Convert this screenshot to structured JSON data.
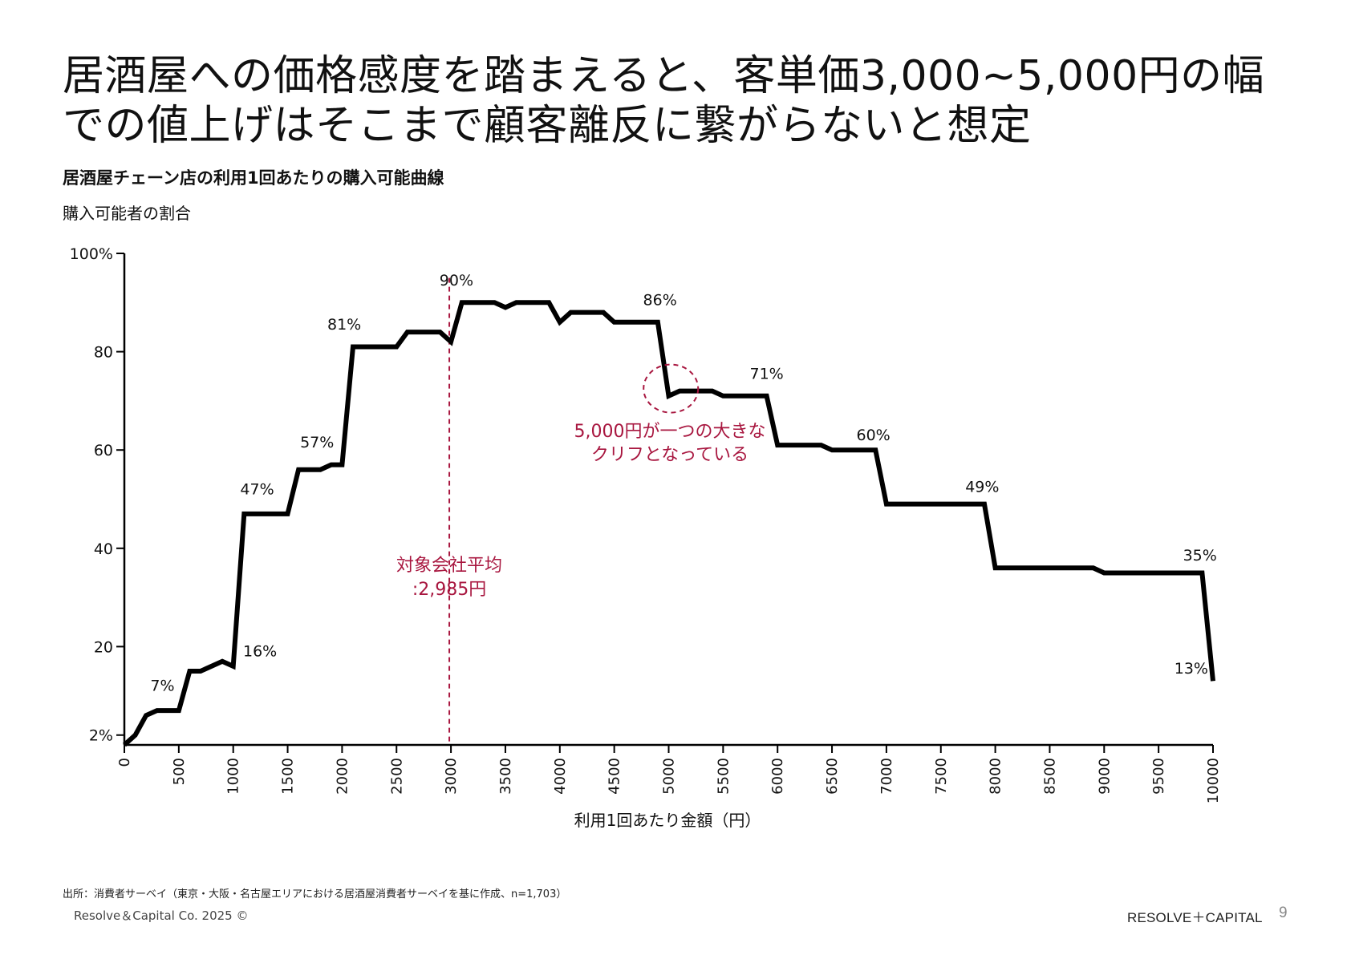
{
  "slide": {
    "title": "居酒屋への価格感度を踏まえると、客単価3,000~5,000円の幅での値上げはそこまで顧客離反に繋がらないと想定",
    "source": "出所：消費者サーベイ（東京・大阪・名古屋エリアにおける居酒屋消費者サーベイを基に作成、n=1,703）",
    "copyright": "Resolve＆Capital Co. 2025 ©",
    "brand": "RESOLVE＋CAPITAL",
    "page_number": "9"
  },
  "colors": {
    "line": "#000000",
    "accent": "#a8163f",
    "text": "#111111"
  },
  "chart_data": {
    "type": "line",
    "title": "居酒屋チェーン店の利用1回あたりの購入可能曲線",
    "ylabel": "購入可能者の割合",
    "xlabel": "利用1回あたり金額（円）",
    "xlim": [
      0,
      10000
    ],
    "ylim": [
      0,
      100
    ],
    "xticks": [
      0,
      500,
      1000,
      1500,
      2000,
      2500,
      3000,
      3500,
      4000,
      4500,
      5000,
      5500,
      6000,
      6500,
      7000,
      7500,
      8000,
      8500,
      9000,
      9500,
      10000
    ],
    "yticks": [
      {
        "value": 2,
        "label": "2%"
      },
      {
        "value": 20,
        "label": "20"
      },
      {
        "value": 40,
        "label": "40"
      },
      {
        "value": 60,
        "label": "60"
      },
      {
        "value": 80,
        "label": "80"
      },
      {
        "value": 100,
        "label": "100%"
      }
    ],
    "grid": false,
    "series": [
      {
        "x": [
          0,
          100,
          200,
          300,
          400,
          500,
          600,
          700,
          800,
          900,
          1000,
          1100,
          1200,
          1300,
          1400,
          1500,
          1600,
          1700,
          1800,
          1900,
          2000,
          2100,
          2200,
          2300,
          2400,
          2500,
          2600,
          2700,
          2800,
          2900,
          3000,
          3100,
          3200,
          3300,
          3400,
          3500,
          3600,
          3700,
          3800,
          3900,
          4000,
          4100,
          4200,
          4300,
          4400,
          4500,
          4600,
          4700,
          4800,
          4900,
          5000,
          5100,
          5200,
          5300,
          5400,
          5500,
          5600,
          5700,
          5800,
          5900,
          6000,
          6100,
          6200,
          6300,
          6400,
          6500,
          6600,
          6700,
          6800,
          6900,
          7000,
          7100,
          7200,
          7300,
          7400,
          7500,
          7600,
          7700,
          7800,
          7900,
          8000,
          8100,
          8200,
          8300,
          8400,
          8500,
          8600,
          8700,
          8800,
          8900,
          9000,
          9100,
          9200,
          9300,
          9400,
          9500,
          9600,
          9700,
          9800,
          9900,
          10000
        ],
        "y": [
          0,
          2,
          6,
          7,
          7,
          7,
          15,
          15,
          16,
          17,
          16,
          47,
          47,
          47,
          47,
          47,
          56,
          56,
          56,
          57,
          57,
          81,
          81,
          81,
          81,
          81,
          84,
          84,
          84,
          84,
          82,
          90,
          90,
          90,
          90,
          89,
          90,
          90,
          90,
          90,
          86,
          88,
          88,
          88,
          88,
          86,
          86,
          86,
          86,
          86,
          71,
          72,
          72,
          72,
          72,
          71,
          71,
          71,
          71,
          71,
          61,
          61,
          61,
          61,
          61,
          60,
          60,
          60,
          60,
          60,
          49,
          49,
          49,
          49,
          49,
          49,
          49,
          49,
          49,
          49,
          36,
          36,
          36,
          36,
          36,
          36,
          36,
          36,
          36,
          36,
          35,
          35,
          35,
          35,
          35,
          35,
          35,
          35,
          35,
          35,
          13
        ]
      }
    ],
    "data_labels": [
      {
        "x": 200,
        "y": 7,
        "label": "7%"
      },
      {
        "x": 1100,
        "y": 16,
        "label": "16%"
      },
      {
        "x": 1200,
        "y": 47,
        "label": "47%"
      },
      {
        "x": 1800,
        "y": 57,
        "label": "57%"
      },
      {
        "x": 2000,
        "y": 81,
        "label": "81%"
      },
      {
        "x": 3000,
        "y": 90,
        "label": "90%"
      },
      {
        "x": 4900,
        "y": 86,
        "label": "86%"
      },
      {
        "x": 5900,
        "y": 71,
        "label": "71%"
      },
      {
        "x": 6900,
        "y": 60,
        "label": "60%"
      },
      {
        "x": 7900,
        "y": 49,
        "label": "49%"
      },
      {
        "x": 9900,
        "y": 35,
        "label": "35%"
      },
      {
        "x": 9900,
        "y": 13,
        "label": "13%"
      }
    ],
    "reference_line": {
      "x": 2985,
      "label_line1": "対象会社平均",
      "label_line2": ":2,985円"
    },
    "annotation": {
      "x": 5000,
      "y": 72,
      "label_line1": "5,000円が一つの大きな",
      "label_line2": "クリフとなっている"
    }
  }
}
